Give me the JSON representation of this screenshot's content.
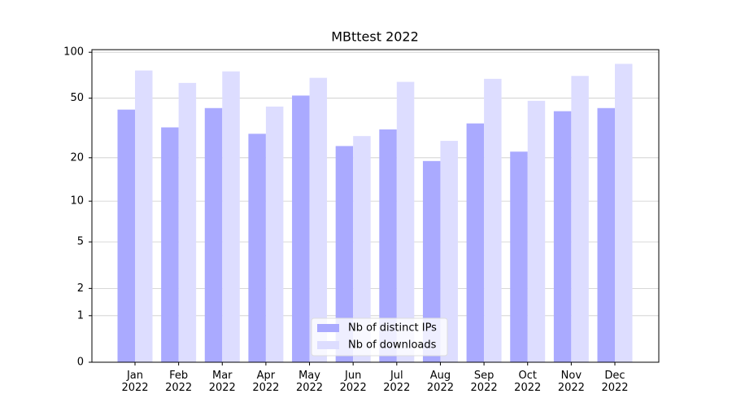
{
  "chart_data": {
    "type": "bar",
    "title": "MBttest 2022",
    "categories": [
      "Jan\n2022",
      "Feb\n2022",
      "Mar\n2022",
      "Apr\n2022",
      "May\n2022",
      "Jun\n2022",
      "Jul\n2022",
      "Aug\n2022",
      "Sep\n2022",
      "Oct\n2022",
      "Nov\n2022",
      "Dec\n2022"
    ],
    "series": [
      {
        "name": "Nb of distinct IPs",
        "color": "#aaaaff",
        "values": [
          42,
          32,
          43,
          29,
          52,
          24,
          31,
          19,
          34,
          22,
          41,
          43
        ]
      },
      {
        "name": "Nb of downloads",
        "color": "#ddddff",
        "values": [
          76,
          63,
          75,
          44,
          68,
          28,
          64,
          26,
          67,
          48,
          70,
          84
        ]
      }
    ],
    "yscale": "log1p",
    "ylim": [
      0,
      104
    ],
    "yticks": [
      0,
      1,
      2,
      5,
      10,
      20,
      50,
      100
    ],
    "grid": true,
    "legend": "lower center"
  }
}
